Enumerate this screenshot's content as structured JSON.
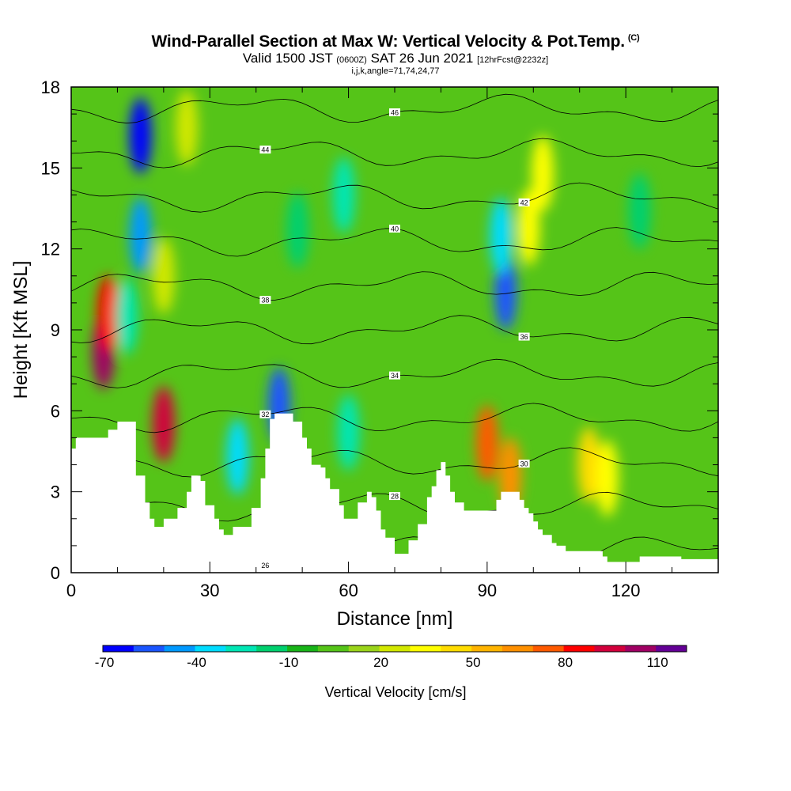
{
  "title": {
    "main": "Wind-Parallel Section at Max W: Vertical Velocity & Pot.Temp.",
    "main_suffix": "(C)",
    "valid_prefix": "Valid 1500 JST",
    "valid_utc": "(0600Z)",
    "valid_date": "SAT 26 Jun 2021",
    "forecast": "[12hrFcst@2232z]",
    "indices": "i,j,k,angle=71,74,24,77"
  },
  "chart_data": {
    "type": "heatmap",
    "xlabel": "Distance [nm]",
    "ylabel": "Height [Kft MSL]",
    "xlim": [
      0,
      140
    ],
    "ylim": [
      0,
      18
    ],
    "xticks": [
      0,
      30,
      60,
      90,
      120
    ],
    "yticks": [
      0,
      3,
      6,
      9,
      12,
      15,
      18
    ],
    "colorbar": {
      "label": "Vertical Velocity [cm/s]",
      "min": -70,
      "step": 10,
      "tick_values": [
        -70,
        -40,
        -10,
        20,
        50,
        80,
        110
      ],
      "colors": [
        "#0000ff",
        "#1a55ff",
        "#0099ff",
        "#00dcff",
        "#00e6b4",
        "#00d06e",
        "#18b418",
        "#55c418",
        "#9ad41a",
        "#d2e800",
        "#ffff00",
        "#ffdc00",
        "#ffb400",
        "#ff9000",
        "#ff5a00",
        "#ff0000",
        "#d2003c",
        "#a00064",
        "#640096"
      ]
    },
    "terrain_kft": [
      [
        0,
        4.6
      ],
      [
        1,
        5
      ],
      [
        6,
        5
      ],
      [
        8,
        5.3
      ],
      [
        10,
        5.6
      ],
      [
        13,
        5.6
      ],
      [
        14,
        3.6
      ],
      [
        16,
        2.6
      ],
      [
        17,
        2
      ],
      [
        18,
        1.7
      ],
      [
        19,
        1.7
      ],
      [
        20,
        2
      ],
      [
        22,
        2
      ],
      [
        23,
        2.4
      ],
      [
        25,
        3
      ],
      [
        26,
        3.6
      ],
      [
        28,
        3.4
      ],
      [
        29,
        2.5
      ],
      [
        31,
        2
      ],
      [
        32,
        1.6
      ],
      [
        33,
        1.4
      ],
      [
        35,
        1.7
      ],
      [
        38,
        1.7
      ],
      [
        39,
        2.4
      ],
      [
        41,
        3.5
      ],
      [
        42,
        4.6
      ],
      [
        43,
        5.7
      ],
      [
        44,
        5.9
      ],
      [
        47,
        5.9
      ],
      [
        48,
        5.6
      ],
      [
        50,
        5
      ],
      [
        51,
        4.6
      ],
      [
        52,
        4
      ],
      [
        54,
        3.9
      ],
      [
        55,
        3.5
      ],
      [
        56,
        3.1
      ],
      [
        58,
        2.5
      ],
      [
        59,
        2
      ],
      [
        61,
        2
      ],
      [
        62,
        2.6
      ],
      [
        64,
        3
      ],
      [
        65,
        2.8
      ],
      [
        66,
        2.3
      ],
      [
        67,
        1.6
      ],
      [
        68,
        1.3
      ],
      [
        70,
        0.7
      ],
      [
        72,
        0.7
      ],
      [
        73,
        1.2
      ],
      [
        75,
        1.8
      ],
      [
        77,
        2.8
      ],
      [
        78,
        3.2
      ],
      [
        79,
        3.8
      ],
      [
        80,
        4.1
      ],
      [
        81,
        3.6
      ],
      [
        82,
        3
      ],
      [
        83,
        2.6
      ],
      [
        85,
        2.3
      ],
      [
        91,
        2.3
      ],
      [
        92,
        2.7
      ],
      [
        93,
        3
      ],
      [
        96,
        3
      ],
      [
        97,
        2.7
      ],
      [
        98,
        2.4
      ],
      [
        99,
        2.2
      ],
      [
        100,
        1.9
      ],
      [
        101,
        1.6
      ],
      [
        102,
        1.4
      ],
      [
        104,
        1.1
      ],
      [
        105,
        1
      ],
      [
        107,
        0.8
      ],
      [
        114,
        0.8
      ],
      [
        115,
        0.6
      ],
      [
        116,
        0.4
      ],
      [
        122,
        0.4
      ],
      [
        123,
        0.6
      ],
      [
        131,
        0.6
      ],
      [
        132,
        0.5
      ],
      [
        140,
        0.5
      ]
    ],
    "velocity_features": [
      {
        "x": 7,
        "y": 8.2,
        "value": 105
      },
      {
        "x": 8,
        "y": 9.6,
        "value": 80
      },
      {
        "x": 20,
        "y": 5.5,
        "value": 90
      },
      {
        "x": 15,
        "y": 16.2,
        "value": -70
      },
      {
        "x": 15,
        "y": 12.5,
        "value": -45
      },
      {
        "x": 12,
        "y": 9.5,
        "value": -30
      },
      {
        "x": 45,
        "y": 6.2,
        "value": -55
      },
      {
        "x": 36,
        "y": 4.3,
        "value": -35
      },
      {
        "x": 60,
        "y": 5.2,
        "value": -30
      },
      {
        "x": 59,
        "y": 14,
        "value": -25
      },
      {
        "x": 90,
        "y": 4.8,
        "value": 70
      },
      {
        "x": 95,
        "y": 3.6,
        "value": 65
      },
      {
        "x": 94,
        "y": 10.4,
        "value": -60
      },
      {
        "x": 93,
        "y": 12.5,
        "value": -40
      },
      {
        "x": 99,
        "y": 12.8,
        "value": 35
      },
      {
        "x": 102,
        "y": 14.8,
        "value": 30
      },
      {
        "x": 112,
        "y": 4,
        "value": 40
      },
      {
        "x": 116,
        "y": 3.5,
        "value": 30
      },
      {
        "x": 20,
        "y": 11,
        "value": 20
      },
      {
        "x": 49,
        "y": 12.7,
        "value": -20
      },
      {
        "x": 25,
        "y": 16.5,
        "value": 25
      },
      {
        "x": 123,
        "y": 13.4,
        "value": -20
      }
    ],
    "contour_labels": [
      "26",
      "28",
      "30",
      "32",
      "34",
      "36",
      "38",
      "40",
      "42",
      "44",
      "46"
    ]
  }
}
